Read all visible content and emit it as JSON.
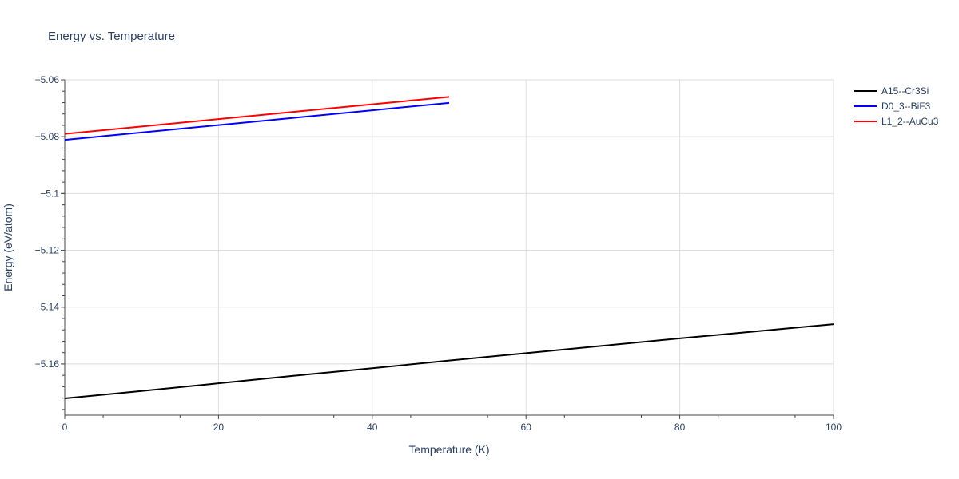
{
  "chart_data": {
    "type": "line",
    "title": "Energy vs. Temperature",
    "xlabel": "Temperature (K)",
    "ylabel": "Energy (eV/atom)",
    "xlim": [
      0,
      100
    ],
    "ylim": [
      -5.178,
      -5.06
    ],
    "x_ticks": [
      0,
      20,
      40,
      60,
      80,
      100
    ],
    "x_tick_labels": [
      "0",
      "20",
      "40",
      "60",
      "80",
      "100"
    ],
    "y_ticks": [
      -5.16,
      -5.14,
      -5.12,
      -5.1,
      -5.08,
      -5.06
    ],
    "y_tick_labels": [
      "−5.16",
      "−5.14",
      "−5.12",
      "−5.1",
      "−5.08",
      "−5.06"
    ],
    "grid": true,
    "legend_position": "top-right (outside plot)",
    "series": [
      {
        "name": "A15--Cr3Si",
        "color": "#000000",
        "x": [
          0,
          10,
          20,
          30,
          40,
          50,
          60,
          70,
          80,
          90,
          100
        ],
        "y": [
          -5.1721,
          -5.1695,
          -5.1668,
          -5.1641,
          -5.1615,
          -5.1588,
          -5.1562,
          -5.1536,
          -5.151,
          -5.1485,
          -5.146
        ]
      },
      {
        "name": "D0_3--BiF3",
        "color": "#0000ff",
        "x": [
          0,
          10,
          20,
          30,
          40,
          50
        ],
        "y": [
          -5.0811,
          -5.0785,
          -5.0759,
          -5.0733,
          -5.0707,
          -5.0681
        ]
      },
      {
        "name": "L1_2--AuCu3",
        "color": "#ff0000",
        "x": [
          0,
          10,
          20,
          30,
          40,
          50
        ],
        "y": [
          -5.079,
          -5.0764,
          -5.0738,
          -5.0712,
          -5.0686,
          -5.066
        ]
      }
    ]
  }
}
